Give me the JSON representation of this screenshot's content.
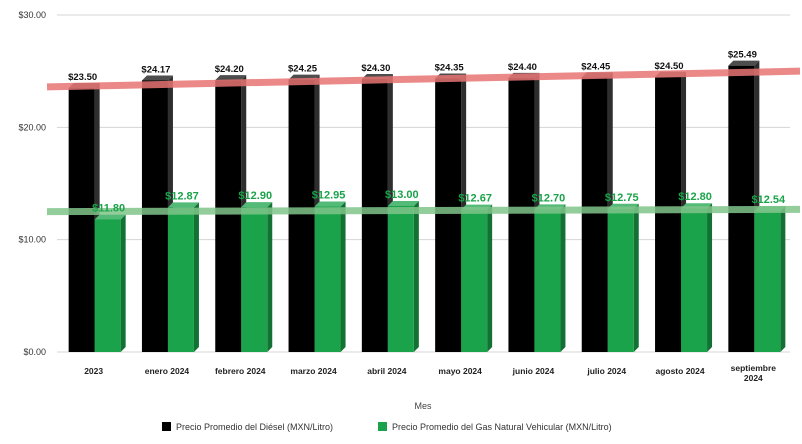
{
  "chart_data": {
    "type": "bar",
    "categories": [
      "2023",
      "enero 2024",
      "febrero 2024",
      "marzo 2024",
      "abril 2024",
      "mayo 2024",
      "junio 2024",
      "julio 2024",
      "agosto 2024",
      "septiembre 2024"
    ],
    "series": [
      {
        "name": "Precio Promedio del Diésel (MXN/Litro)",
        "color": "#000000",
        "values": [
          23.5,
          24.17,
          24.2,
          24.25,
          24.3,
          24.35,
          24.4,
          24.45,
          24.5,
          25.49
        ],
        "labels": [
          "$23.50",
          "$24.17",
          "$24.20",
          "$24.25",
          "$24.30",
          "$24.35",
          "$24.40",
          "$24.45",
          "$24.50",
          "$25.49"
        ]
      },
      {
        "name": "Precio Promedio del Gas Natural Vehicular (MXN/Litro)",
        "color": "#1aa34a",
        "values": [
          11.8,
          12.87,
          12.9,
          12.95,
          13.0,
          12.67,
          12.7,
          12.75,
          12.8,
          12.54
        ],
        "labels": [
          "$11.80",
          "$12.87",
          "$12.90",
          "$12.95",
          "$13.00",
          "$12.67",
          "$12.70",
          "$12.75",
          "$12.80",
          "$12.54"
        ]
      }
    ],
    "trendlines": [
      {
        "series": "Precio Promedio del Diésel (MXN/Litro)",
        "color": "#e87474",
        "start": 23.6,
        "end": 25.0
      },
      {
        "series": "Precio Promedio del Gas Natural Vehicular (MXN/Litro)",
        "color": "#7fc48a",
        "start": 12.5,
        "end": 12.7
      }
    ],
    "yticks": [
      0,
      10,
      20,
      30
    ],
    "ytick_labels": [
      "$0.00",
      "$10.00",
      "$20.00",
      "$30.00"
    ],
    "ylim": [
      0,
      30
    ],
    "xlabel": "Mes",
    "ylabel": "",
    "grid": true,
    "legend_position": "bottom"
  }
}
